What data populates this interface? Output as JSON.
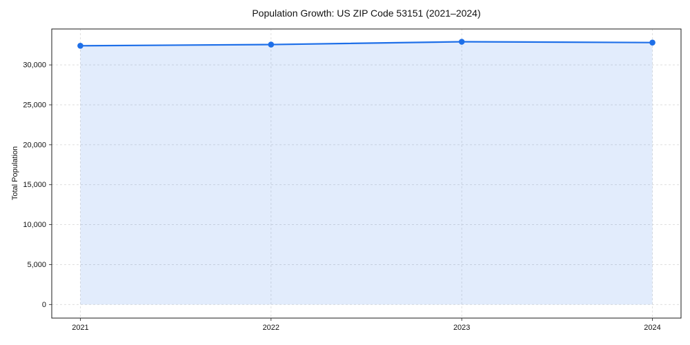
{
  "chart_data": {
    "type": "area",
    "title": "Population Growth: US ZIP Code 53151 (2021–2024)",
    "xlabel": "",
    "ylabel": "Total Population",
    "x": [
      2021,
      2022,
      2023,
      2024
    ],
    "series": [
      {
        "name": "Total Population",
        "values": [
          32400,
          32550,
          32900,
          32800
        ]
      }
    ],
    "xlim": [
      2020.85,
      2024.15
    ],
    "ylim": [
      -1700,
      34500
    ],
    "xticks": [
      2021,
      2022,
      2023,
      2024
    ],
    "xtick_labels": [
      "2021",
      "2022",
      "2023",
      "2024"
    ],
    "yticks": [
      0,
      5000,
      10000,
      15000,
      20000,
      25000,
      30000
    ],
    "ytick_labels": [
      "0",
      "5,000",
      "10,000",
      "15,000",
      "20,000",
      "25,000",
      "30,000"
    ],
    "grid": true,
    "grid_style": "dashed",
    "legend": false,
    "baseline_value": 0,
    "colors": {
      "line": "#1e6fe8",
      "marker": "#1e6fe8",
      "fill": "rgba(30,111,232,0.13)",
      "grid": "#d9d9d9",
      "spine": "#1a1a1a",
      "text": "#111111",
      "background": "#ffffff"
    }
  }
}
